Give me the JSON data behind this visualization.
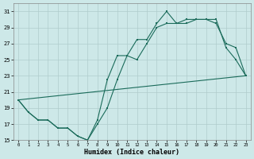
{
  "xlabel": "Humidex (Indice chaleur)",
  "bg_color": "#cde8e8",
  "line_color": "#1a6b5a",
  "grid_color": "#b0cccc",
  "xlim": [
    -0.5,
    23.5
  ],
  "ylim": [
    15,
    32
  ],
  "xticks": [
    0,
    1,
    2,
    3,
    4,
    5,
    6,
    7,
    8,
    9,
    10,
    11,
    12,
    13,
    14,
    15,
    16,
    17,
    18,
    19,
    20,
    21,
    22,
    23
  ],
  "yticks": [
    15,
    17,
    19,
    21,
    23,
    25,
    27,
    29,
    31
  ],
  "line1_x": [
    0,
    1,
    2,
    3,
    4,
    5,
    6,
    7,
    8,
    9,
    10,
    11,
    12,
    13,
    14,
    15,
    16,
    17,
    18,
    19,
    20,
    21,
    22,
    23
  ],
  "line1_y": [
    20.0,
    18.5,
    17.5,
    17.5,
    16.5,
    16.5,
    15.5,
    15.0,
    17.5,
    22.5,
    25.5,
    25.5,
    27.5,
    27.5,
    29.5,
    31.0,
    29.5,
    29.5,
    30.0,
    30.0,
    30.0,
    26.5,
    25.0,
    23.0
  ],
  "line2_x": [
    0,
    1,
    2,
    3,
    4,
    5,
    6,
    7,
    8,
    9,
    10,
    11,
    12,
    13,
    14,
    15,
    16,
    17,
    18,
    19,
    20,
    21,
    22,
    23
  ],
  "line2_y": [
    20.0,
    18.5,
    17.5,
    17.5,
    16.5,
    16.5,
    15.5,
    15.0,
    17.0,
    19.0,
    22.5,
    25.5,
    25.0,
    27.0,
    29.0,
    29.5,
    29.5,
    30.0,
    30.0,
    30.0,
    29.5,
    27.0,
    26.5,
    23.0
  ],
  "line3_x": [
    0,
    23
  ],
  "line3_y": [
    20.0,
    23.0
  ]
}
